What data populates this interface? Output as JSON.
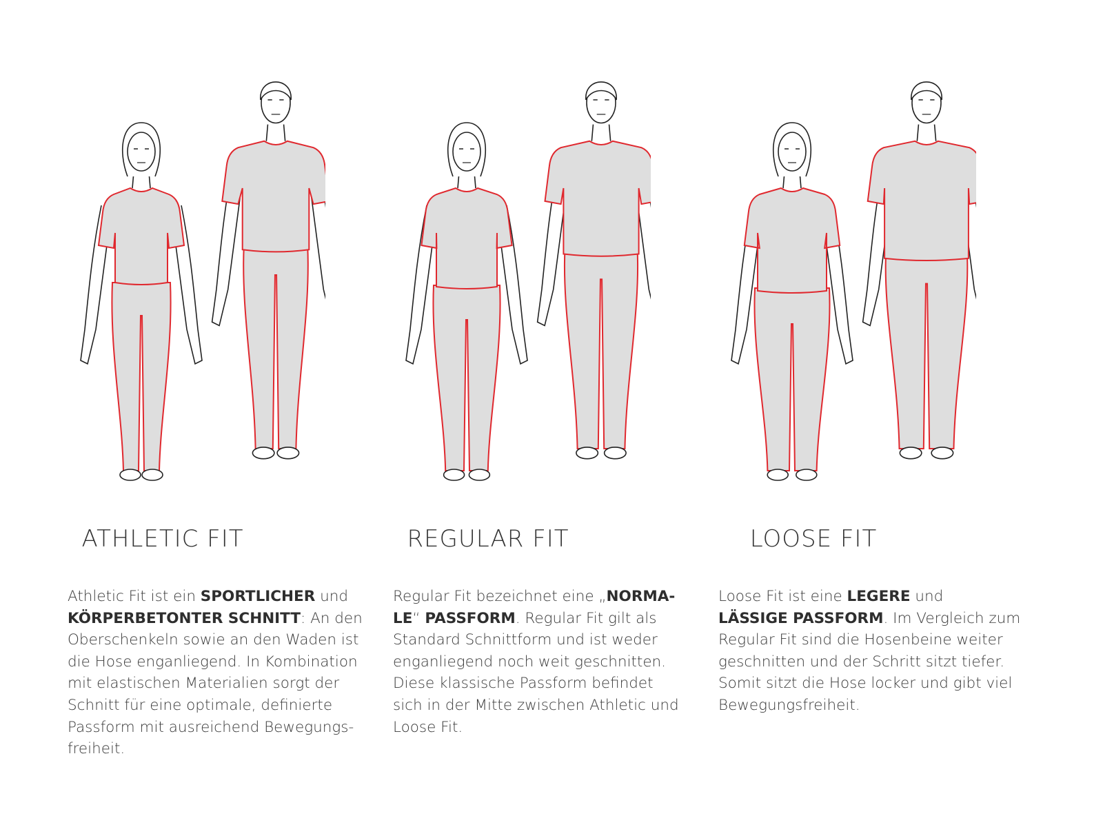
{
  "colors": {
    "outline": "#222222",
    "garment_fill": "#dedede",
    "garment_edge": "#e0282e",
    "text": "#333333"
  },
  "fits": [
    {
      "title": "ATHLETIC FIT",
      "looseness": 0,
      "lines": [
        [
          {
            "t": "Athletic Fit ist ein "
          },
          {
            "t": "SPORTLICHER",
            "b": true
          },
          {
            "t": " und"
          }
        ],
        [
          {
            "t": "KÖRPERBETONTER SCHNITT",
            "b": true
          },
          {
            "t": ": An den"
          }
        ],
        [
          {
            "t": "Oberschenkeln sowie an den Waden ist"
          }
        ],
        [
          {
            "t": "die Hose enganliegend. In Kombination"
          }
        ],
        [
          {
            "t": "mit elastischen Materialien sorgt der"
          }
        ],
        [
          {
            "t": "Schnitt für eine optimale, definierte"
          }
        ],
        [
          {
            "t": "Passform mit ausreichend Bewegungs-"
          }
        ],
        [
          {
            "t": "freiheit."
          }
        ]
      ]
    },
    {
      "title": "REGULAR FIT",
      "looseness": 1,
      "lines": [
        [
          {
            "t": "Regular Fit bezeichnet eine „"
          },
          {
            "t": "NORMA-",
            "b": true
          }
        ],
        [
          {
            "t": "LE",
            "b": true
          },
          {
            "t": "“ "
          },
          {
            "t": "PASSFORM",
            "b": true
          },
          {
            "t": ". Regular Fit gilt als"
          }
        ],
        [
          {
            "t": "Standard Schnittform und ist weder"
          }
        ],
        [
          {
            "t": "enganliegend noch weit geschnitten."
          }
        ],
        [
          {
            "t": "Diese klassische Passform befindet"
          }
        ],
        [
          {
            "t": "sich in der Mitte zwischen Athletic und"
          }
        ],
        [
          {
            "t": "Loose Fit."
          }
        ]
      ]
    },
    {
      "title": "LOOSE FIT",
      "looseness": 2,
      "lines": [
        [
          {
            "t": "Loose Fit ist eine "
          },
          {
            "t": "LEGERE",
            "b": true
          },
          {
            "t": " und"
          }
        ],
        [
          {
            "t": "LÄSSIGE PASSFORM",
            "b": true
          },
          {
            "t": ". Im Vergleich zum"
          }
        ],
        [
          {
            "t": "Regular Fit sind die Hosenbeine weiter"
          }
        ],
        [
          {
            "t": "geschnitten und der Schritt sitzt tiefer."
          }
        ],
        [
          {
            "t": "Somit sitzt die Hose locker und gibt viel"
          }
        ],
        [
          {
            "t": "Bewegungsfreiheit."
          }
        ]
      ]
    }
  ]
}
